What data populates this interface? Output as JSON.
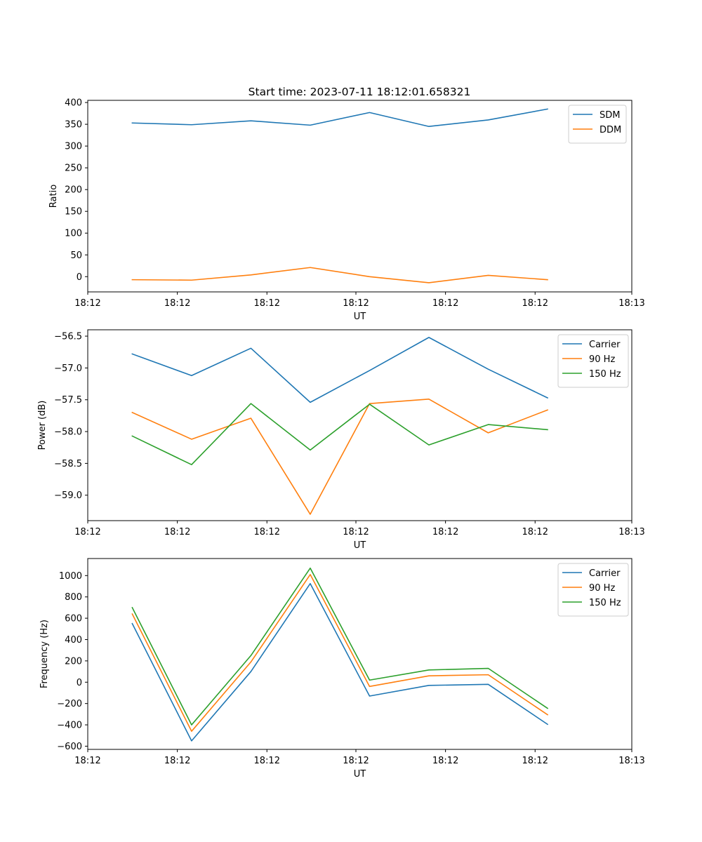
{
  "figure_title": "Start time: 2023-07-11 18:12:01.658321",
  "chart_data": [
    {
      "type": "line",
      "title": "Start time: 2023-07-11 18:12:01.658321",
      "xlabel": "UT",
      "ylabel": "Ratio",
      "x": [
        0,
        1,
        2,
        3,
        4,
        5,
        6,
        7
      ],
      "xlim": [
        -0.75,
        8.42
      ],
      "xticks": [
        -0.75,
        0.76,
        2.27,
        3.77,
        5.28,
        6.79,
        8.42
      ],
      "xtick_labels": [
        "18:12",
        "18:12",
        "18:12",
        "18:12",
        "18:12",
        "18:12",
        "18:13"
      ],
      "ylim": [
        -35,
        405
      ],
      "yticks": [
        0,
        50,
        100,
        150,
        200,
        250,
        300,
        350,
        400
      ],
      "ytick_labels": [
        "0",
        "50",
        "100",
        "150",
        "200",
        "250",
        "300",
        "350",
        "400"
      ],
      "legend_position": "top-right",
      "series": [
        {
          "name": "SDM",
          "color": "#1f77b4",
          "values": [
            353,
            349,
            358,
            348,
            377,
            345,
            360,
            385
          ]
        },
        {
          "name": "DDM",
          "color": "#ff7f0e",
          "values": [
            -7,
            -8,
            4,
            21,
            0,
            -14,
            3,
            -7
          ]
        }
      ]
    },
    {
      "type": "line",
      "title": "",
      "xlabel": "UT",
      "ylabel": "Power (dB)",
      "x": [
        0,
        1,
        2,
        3,
        4,
        5,
        6,
        7
      ],
      "xlim": [
        -0.75,
        8.42
      ],
      "xticks": [
        -0.75,
        0.76,
        2.27,
        3.77,
        5.28,
        6.79,
        8.42
      ],
      "xtick_labels": [
        "18:12",
        "18:12",
        "18:12",
        "18:12",
        "18:12",
        "18:12",
        "18:13"
      ],
      "ylim": [
        -59.4,
        -56.4
      ],
      "yticks": [
        -59.0,
        -58.5,
        -58.0,
        -57.5,
        -57.0,
        -56.5
      ],
      "ytick_labels": [
        "−59.0",
        "−58.5",
        "−58.0",
        "−57.5",
        "−57.0",
        "−56.5"
      ],
      "legend_position": "top-right",
      "series": [
        {
          "name": "Carrier",
          "color": "#1f77b4",
          "values": [
            -56.78,
            -57.12,
            -56.69,
            -57.54,
            -57.04,
            -56.52,
            -57.02,
            -57.47
          ]
        },
        {
          "name": "90 Hz",
          "color": "#ff7f0e",
          "values": [
            -57.7,
            -58.12,
            -57.79,
            -59.3,
            -57.56,
            -57.49,
            -58.02,
            -57.66
          ]
        },
        {
          "name": "150 Hz",
          "color": "#2ca02c",
          "values": [
            -58.07,
            -58.52,
            -57.56,
            -58.29,
            -57.57,
            -58.21,
            -57.89,
            -57.97
          ]
        }
      ]
    },
    {
      "type": "line",
      "title": "",
      "xlabel": "UT",
      "ylabel": "Frequency (Hz)",
      "x": [
        0,
        1,
        2,
        3,
        4,
        5,
        6,
        7
      ],
      "xlim": [
        -0.75,
        8.42
      ],
      "xticks": [
        -0.75,
        0.76,
        2.27,
        3.77,
        5.28,
        6.79,
        8.42
      ],
      "xtick_labels": [
        "18:12",
        "18:12",
        "18:12",
        "18:12",
        "18:12",
        "18:12",
        "18:13"
      ],
      "ylim": [
        -630,
        1160
      ],
      "yticks": [
        -600,
        -400,
        -200,
        0,
        200,
        400,
        600,
        800,
        1000
      ],
      "ytick_labels": [
        "−600",
        "−400",
        "−200",
        "0",
        "200",
        "400",
        "600",
        "800",
        "1000"
      ],
      "legend_position": "top-right",
      "series": [
        {
          "name": "Carrier",
          "color": "#1f77b4",
          "values": [
            550,
            -550,
            100,
            925,
            -130,
            -30,
            -20,
            -395
          ]
        },
        {
          "name": "90 Hz",
          "color": "#ff7f0e",
          "values": [
            640,
            -460,
            190,
            1010,
            -40,
            60,
            70,
            -305
          ]
        },
        {
          "name": "150 Hz",
          "color": "#2ca02c",
          "values": [
            700,
            -400,
            250,
            1070,
            20,
            115,
            130,
            -245
          ]
        }
      ]
    }
  ]
}
